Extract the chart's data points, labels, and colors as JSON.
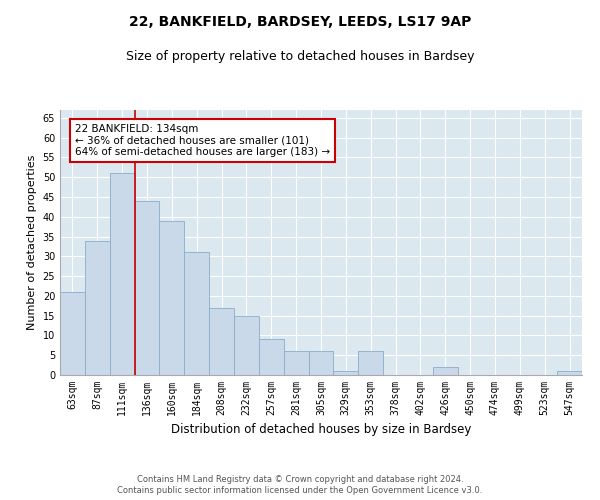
{
  "title1": "22, BANKFIELD, BARDSEY, LEEDS, LS17 9AP",
  "title2": "Size of property relative to detached houses in Bardsey",
  "xlabel": "Distribution of detached houses by size in Bardsey",
  "ylabel": "Number of detached properties",
  "categories": [
    "63sqm",
    "87sqm",
    "111sqm",
    "136sqm",
    "160sqm",
    "184sqm",
    "208sqm",
    "232sqm",
    "257sqm",
    "281sqm",
    "305sqm",
    "329sqm",
    "353sqm",
    "378sqm",
    "402sqm",
    "426sqm",
    "450sqm",
    "474sqm",
    "499sqm",
    "523sqm",
    "547sqm"
  ],
  "values": [
    21,
    34,
    51,
    44,
    39,
    31,
    17,
    15,
    9,
    6,
    6,
    1,
    6,
    0,
    0,
    2,
    0,
    0,
    0,
    0,
    1
  ],
  "bar_color": "#c9d9ea",
  "bar_edge_color": "#8aacc8",
  "red_line_x": 2.5,
  "annotation_text": "22 BANKFIELD: 134sqm\n← 36% of detached houses are smaller (101)\n64% of semi-detached houses are larger (183) →",
  "annotation_box_color": "white",
  "annotation_box_edge_color": "#cc0000",
  "red_line_color": "#cc0000",
  "ylim": [
    0,
    67
  ],
  "yticks": [
    0,
    5,
    10,
    15,
    20,
    25,
    30,
    35,
    40,
    45,
    50,
    55,
    60,
    65
  ],
  "background_color": "#dce8f0",
  "grid_color": "#ffffff",
  "footer1": "Contains HM Land Registry data © Crown copyright and database right 2024.",
  "footer2": "Contains public sector information licensed under the Open Government Licence v3.0.",
  "title1_fontsize": 10,
  "title2_fontsize": 9,
  "xlabel_fontsize": 8.5,
  "ylabel_fontsize": 8,
  "tick_fontsize": 7,
  "annotation_fontsize": 7.5,
  "footer_fontsize": 6
}
